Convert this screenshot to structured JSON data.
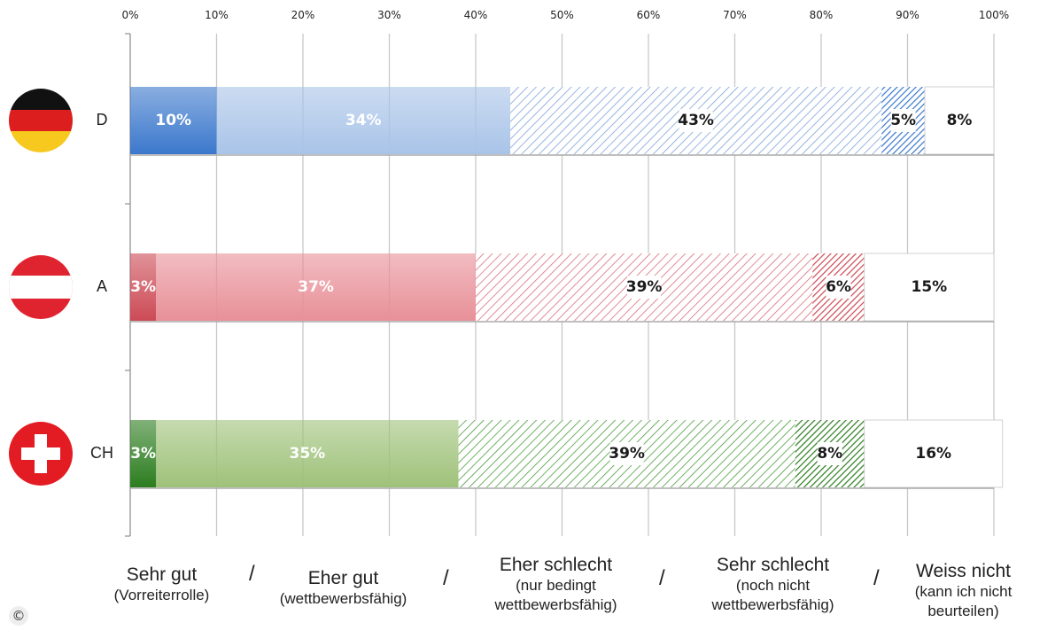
{
  "chart_data": {
    "type": "bar",
    "orientation": "horizontal",
    "stacked": true,
    "x_ticks": [
      "0%",
      "10%",
      "20%",
      "30%",
      "40%",
      "50%",
      "60%",
      "70%",
      "80%",
      "90%",
      "100%"
    ],
    "xlim": [
      0,
      100
    ],
    "grid": true,
    "categories": [
      "D",
      "A",
      "CH"
    ],
    "series": [
      {
        "name": "Sehr gut",
        "values": [
          10,
          3,
          3
        ],
        "labels": [
          "10%",
          "3%",
          "3%"
        ]
      },
      {
        "name": "Eher gut",
        "values": [
          34,
          37,
          35
        ],
        "labels": [
          "34%",
          "37%",
          "35%"
        ]
      },
      {
        "name": "Eher schlecht",
        "values": [
          43,
          39,
          39
        ],
        "labels": [
          "43%",
          "39%",
          "39%"
        ]
      },
      {
        "name": "Sehr schlecht",
        "values": [
          5,
          6,
          8
        ],
        "labels": [
          "5%",
          "6%",
          "8%"
        ]
      },
      {
        "name": "Weiss nicht",
        "values": [
          8,
          15,
          16
        ],
        "labels": [
          "8%",
          "15%",
          "16%"
        ]
      }
    ],
    "colors": {
      "D": {
        "dark": "#3b78cc",
        "light": "#a9c4e8",
        "hatch": "#7ea3d6"
      },
      "A": {
        "dark": "#cc4a55",
        "light": "#e89098",
        "hatch": "#d8707a"
      },
      "CH": {
        "dark": "#2c7d1f",
        "light": "#9fc27a",
        "hatch": "#4c9a3e"
      }
    },
    "flags": [
      "germany-flag",
      "austria-flag",
      "switzerland-flag"
    ]
  },
  "legend": [
    {
      "main": "Sehr gut",
      "sub": [
        "(Vorreiterrolle)"
      ]
    },
    {
      "main": "Eher gut",
      "sub": [
        "(wettbewerbsfähig)"
      ]
    },
    {
      "main": "Eher schlecht",
      "sub": [
        "(nur bedingt",
        "wettbewerbsfähig)"
      ]
    },
    {
      "main": "Sehr schlecht",
      "sub": [
        "(noch nicht",
        "wettbewerbsfähig)"
      ]
    },
    {
      "main": "Weiss nicht",
      "sub": [
        "(kann ich nicht",
        "beurteilen)"
      ]
    }
  ],
  "separator": "/",
  "copyright_symbol": "©"
}
